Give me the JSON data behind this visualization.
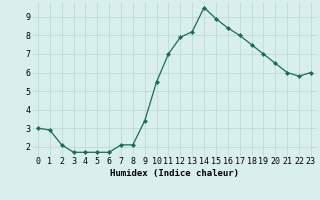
{
  "x": [
    0,
    1,
    2,
    3,
    4,
    5,
    6,
    7,
    8,
    9,
    10,
    11,
    12,
    13,
    14,
    15,
    16,
    17,
    18,
    19,
    20,
    21,
    22,
    23
  ],
  "y": [
    3.0,
    2.9,
    2.1,
    1.7,
    1.7,
    1.7,
    1.7,
    2.1,
    2.1,
    3.4,
    5.5,
    7.0,
    7.9,
    8.2,
    9.5,
    8.9,
    8.4,
    8.0,
    7.5,
    7.0,
    6.5,
    6.0,
    5.8,
    6.0
  ],
  "title": "",
  "xlabel": "Humidex (Indice chaleur)",
  "ylabel": "",
  "xlim": [
    -0.5,
    23.5
  ],
  "ylim": [
    1.5,
    9.8
  ],
  "yticks": [
    2,
    3,
    4,
    5,
    6,
    7,
    8,
    9
  ],
  "xticks": [
    0,
    1,
    2,
    3,
    4,
    5,
    6,
    7,
    8,
    9,
    10,
    11,
    12,
    13,
    14,
    15,
    16,
    17,
    18,
    19,
    20,
    21,
    22,
    23
  ],
  "line_color": "#1a6b5a",
  "marker": "D",
  "marker_size": 2.0,
  "bg_color": "#d8efee",
  "grid_color": "#b5d8d5",
  "xlabel_fontsize": 6.5,
  "tick_fontsize": 6.0,
  "linewidth": 0.9
}
